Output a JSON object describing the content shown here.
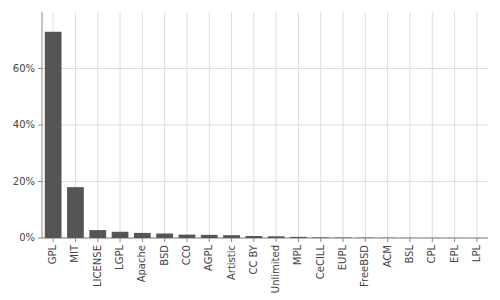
{
  "chart_data": {
    "type": "bar",
    "categories": [
      "GPL",
      "MIT",
      "LICENSE",
      "LGPL",
      "Apache",
      "BSD",
      "CC0",
      "AGPL",
      "Artistic",
      "CC BY",
      "Unlimited",
      "MPL",
      "CeCILL",
      "EUPL",
      "FreeBSD",
      "ACM",
      "BSL",
      "CPL",
      "EPL",
      "LPL"
    ],
    "values": [
      0.73,
      0.18,
      0.028,
      0.022,
      0.018,
      0.016,
      0.012,
      0.011,
      0.01,
      0.007,
      0.006,
      0.004,
      0.002,
      0.0015,
      0.001,
      0.0008,
      0.0005,
      0.0004,
      0.0003,
      0.0002
    ],
    "color": "#555555",
    "ylim": [
      0,
      0.8
    ],
    "yticks": [
      {
        "value": 0.0,
        "label": "0%"
      },
      {
        "value": 0.2,
        "label": "20%"
      },
      {
        "value": 0.4,
        "label": "40%"
      },
      {
        "value": 0.6,
        "label": "60%"
      }
    ],
    "grid": true
  }
}
